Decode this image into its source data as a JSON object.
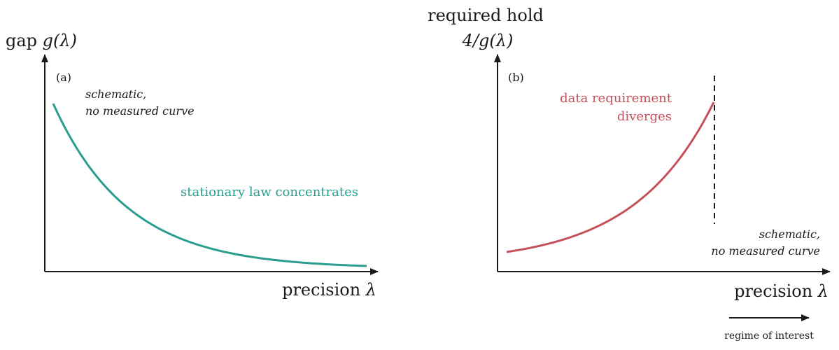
{
  "panel_a": {
    "label": "(a)",
    "ylabel_prefix": "gap ",
    "ylabel_math": "g(λ)",
    "xlabel_prefix": "precision ",
    "xlabel_math": "λ",
    "note_line1": "schematic,",
    "note_line2": "no measured curve",
    "curve_label": "stationary law concentrates",
    "curve_color": "#2a9d8f",
    "curve": {
      "shape": "decreasing exponential decay"
    }
  },
  "panel_b": {
    "label": "(b)",
    "ylabel_line1": "required hold",
    "ylabel_line2_math": "4/g(λ)",
    "xlabel_prefix": "precision ",
    "xlabel_math": "λ",
    "note_line1": "schematic,",
    "note_line2": "no measured curve",
    "curve_label_line1": "data requirement",
    "curve_label_line2": "diverges",
    "curve_color": "#c4505a",
    "curve": {
      "shape": "increasing, diverging at a dashed vertical asymptote"
    },
    "regime_label": "regime of interest"
  },
  "colors": {
    "axis": "#1a1a1a",
    "text": "#1a1a1a",
    "teal": "#2a9d8f",
    "red": "#c4505a"
  }
}
